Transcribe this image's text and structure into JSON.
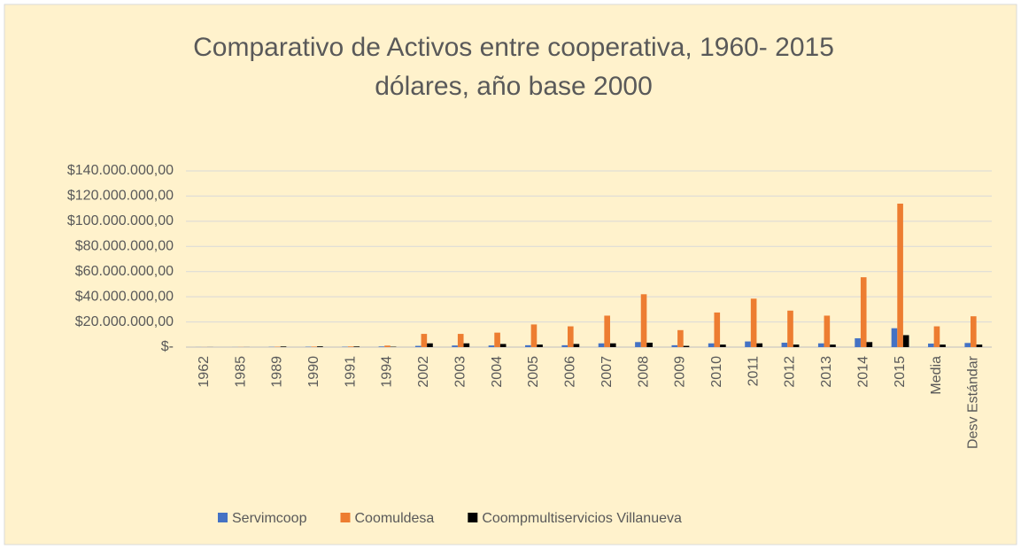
{
  "chart_data": {
    "type": "bar",
    "title": [
      "Comparativo de Activos entre cooperativa, 1960- 2015",
      "dólares, año base 2000"
    ],
    "categories": [
      "1962",
      "1985",
      "1989",
      "1990",
      "1991",
      "1994",
      "2002",
      "2003",
      "2004",
      "2005",
      "2006",
      "2007",
      "2008",
      "2009",
      "2010",
      "2011",
      "2012",
      "2013",
      "2014",
      "2015",
      "Media",
      "Desv Estándar"
    ],
    "series": [
      {
        "name": "Servimcoop",
        "color": "#4472c4",
        "values": [
          50000,
          50000,
          200000,
          300000,
          300000,
          500000,
          1000000,
          1300000,
          1300000,
          1500000,
          1500000,
          3000000,
          4000000,
          1500000,
          3000000,
          4500000,
          3500000,
          3000000,
          7000000,
          15000000,
          2800000,
          3300000
        ]
      },
      {
        "name": "Coomuldesa",
        "color": "#ed7d31",
        "values": [
          50000,
          100000,
          300000,
          400000,
          500000,
          1200000,
          10500000,
          10500000,
          11500000,
          18000000,
          16500000,
          25000000,
          42000000,
          13500000,
          27500000,
          38500000,
          29000000,
          25000000,
          55500000,
          114000000,
          16500000,
          24500000
        ]
      },
      {
        "name": "Coompmultiservicios Villanueva",
        "color": "#000000",
        "values": [
          50000,
          50000,
          500000,
          600000,
          500000,
          300000,
          3000000,
          3000000,
          2500000,
          2000000,
          2500000,
          3000000,
          3500000,
          1000000,
          2000000,
          3000000,
          2000000,
          2000000,
          4000000,
          9500000,
          2000000,
          2000000
        ]
      }
    ],
    "ylim": [
      0,
      140000000
    ],
    "yticks": [
      {
        "value": 0,
        "label": "$-"
      },
      {
        "value": 20000000,
        "label": "$20.000.000,00"
      },
      {
        "value": 40000000,
        "label": "$40.000.000,00"
      },
      {
        "value": 60000000,
        "label": "$60.000.000,00"
      },
      {
        "value": 80000000,
        "label": "$80.000.000,00"
      },
      {
        "value": 100000000,
        "label": "$100.000.000,00"
      },
      {
        "value": 120000000,
        "label": "$120.000.000,00"
      },
      {
        "value": 140000000,
        "label": "$140.000.000,00"
      }
    ],
    "grid": true,
    "legend": "bottom"
  }
}
